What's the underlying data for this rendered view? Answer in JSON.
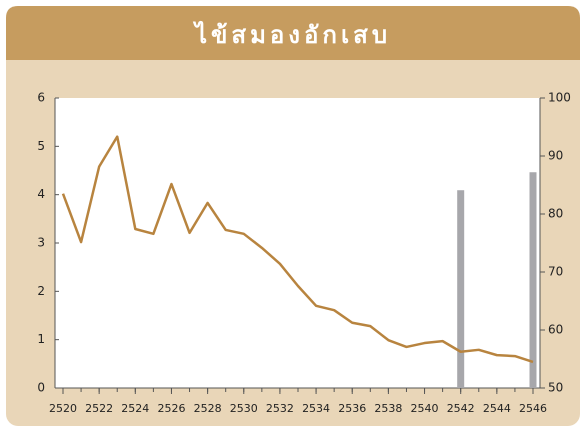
{
  "chart_data": {
    "type": "line_bar",
    "title": "ไข้สมองอักเสบ",
    "x": [
      2520,
      2521,
      2522,
      2523,
      2524,
      2525,
      2526,
      2527,
      2528,
      2529,
      2530,
      2531,
      2532,
      2533,
      2534,
      2535,
      2536,
      2537,
      2538,
      2539,
      2540,
      2541,
      2542,
      2543,
      2544,
      2545,
      2546
    ],
    "xlim": [
      2520,
      2546
    ],
    "xticks": [
      2520,
      2522,
      2524,
      2526,
      2528,
      2530,
      2532,
      2534,
      2536,
      2538,
      2540,
      2542,
      2544,
      2546
    ],
    "ylim": [
      0,
      6
    ],
    "yticks": [
      0,
      1,
      2,
      3,
      4,
      5,
      6
    ],
    "y2lim": [
      50,
      100
    ],
    "y2ticks": [
      50,
      60,
      70,
      80,
      90,
      100
    ],
    "series": [
      {
        "type": "line",
        "color": "#b8843f",
        "values": [
          4.02,
          3.02,
          4.58,
          5.2,
          3.29,
          3.19,
          4.22,
          3.21,
          3.83,
          3.27,
          3.19,
          2.9,
          2.57,
          2.11,
          1.7,
          1.61,
          1.35,
          1.28,
          0.99,
          0.85,
          0.93,
          0.97,
          0.75,
          0.79,
          0.68,
          0.66,
          0.54
        ]
      },
      {
        "type": "bar",
        "axis": "y2",
        "color": "#a7a7ab",
        "values": [
          null,
          null,
          null,
          null,
          null,
          null,
          null,
          null,
          null,
          null,
          null,
          null,
          null,
          null,
          null,
          null,
          null,
          null,
          null,
          null,
          null,
          null,
          84.1,
          null,
          null,
          null,
          87.2
        ]
      }
    ]
  }
}
